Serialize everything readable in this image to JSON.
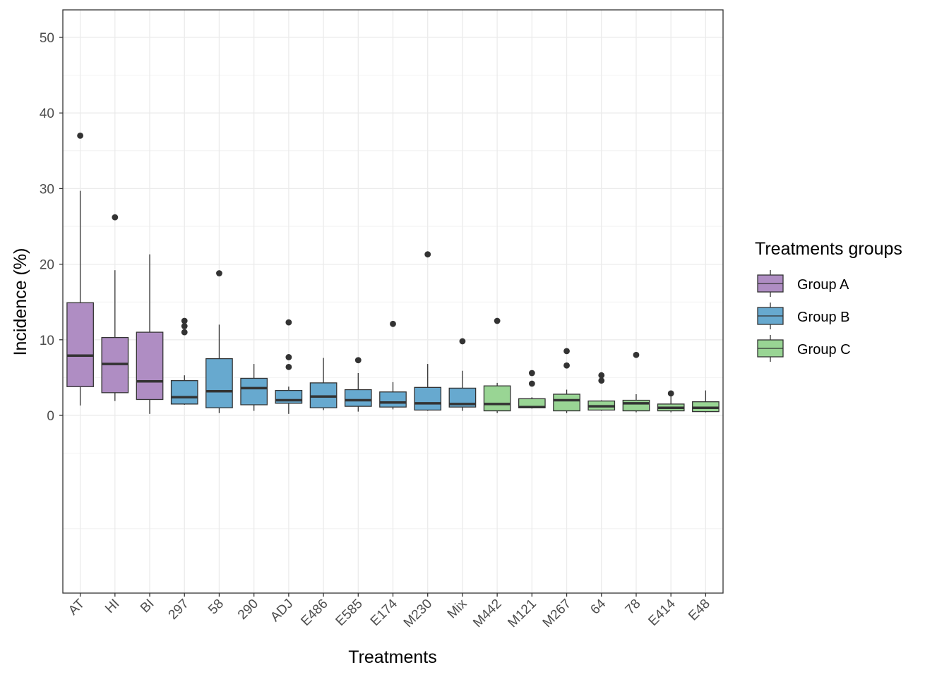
{
  "chart_data": {
    "type": "box",
    "xlabel": "Treatments",
    "ylabel": "Incidence (%)",
    "ylim": [
      -23.5,
      54
    ],
    "yticks": [
      0,
      10,
      20,
      30,
      40,
      50
    ],
    "grid": true,
    "legend": {
      "title": "Treatments groups",
      "position": "right",
      "entries": [
        {
          "label": "Group A",
          "color": "#af8dc3"
        },
        {
          "label": "Group B",
          "color": "#67a9cf"
        },
        {
          "label": "Group C",
          "color": "#99d594"
        }
      ]
    },
    "boxes": [
      {
        "category": "AT",
        "group": "Group A",
        "min": 1.3,
        "q1": 3.8,
        "median": 7.9,
        "q3": 14.9,
        "max": 29.7,
        "outliers": [
          37.0
        ]
      },
      {
        "category": "HI",
        "group": "Group A",
        "min": 1.9,
        "q1": 3.0,
        "median": 6.8,
        "q3": 10.3,
        "max": 19.2,
        "outliers": [
          26.2
        ]
      },
      {
        "category": "BI",
        "group": "Group A",
        "min": 0.2,
        "q1": 2.1,
        "median": 4.5,
        "q3": 11.0,
        "max": 21.3,
        "outliers": []
      },
      {
        "category": "297",
        "group": "Group B",
        "min": 1.4,
        "q1": 1.5,
        "median": 2.4,
        "q3": 4.6,
        "max": 5.3,
        "outliers": [
          11.0,
          11.8,
          12.5
        ]
      },
      {
        "category": "58",
        "group": "Group B",
        "min": 0.3,
        "q1": 1.0,
        "median": 3.2,
        "q3": 7.5,
        "max": 12.0,
        "outliers": [
          18.8
        ]
      },
      {
        "category": "290",
        "group": "Group B",
        "min": 0.6,
        "q1": 1.4,
        "median": 3.6,
        "q3": 4.9,
        "max": 6.8,
        "outliers": []
      },
      {
        "category": "ADJ",
        "group": "Group B",
        "min": 0.2,
        "q1": 1.6,
        "median": 2.0,
        "q3": 3.3,
        "max": 3.8,
        "outliers": [
          6.4,
          7.7,
          12.3
        ]
      },
      {
        "category": "E486",
        "group": "Group B",
        "min": 0.7,
        "q1": 1.0,
        "median": 2.5,
        "q3": 4.3,
        "max": 7.6,
        "outliers": []
      },
      {
        "category": "E585",
        "group": "Group B",
        "min": 0.5,
        "q1": 1.2,
        "median": 2.0,
        "q3": 3.4,
        "max": 5.6,
        "outliers": [
          7.3
        ]
      },
      {
        "category": "E174",
        "group": "Group B",
        "min": 0.8,
        "q1": 1.1,
        "median": 1.7,
        "q3": 3.1,
        "max": 4.4,
        "outliers": [
          12.1
        ]
      },
      {
        "category": "M230",
        "group": "Group B",
        "min": 0.6,
        "q1": 0.7,
        "median": 1.6,
        "q3": 3.7,
        "max": 6.8,
        "outliers": [
          21.3
        ]
      },
      {
        "category": "Mix",
        "group": "Group B",
        "min": 0.6,
        "q1": 1.1,
        "median": 1.5,
        "q3": 3.6,
        "max": 5.9,
        "outliers": [
          9.8
        ]
      },
      {
        "category": "M442",
        "group": "Group C",
        "min": 0.3,
        "q1": 0.6,
        "median": 1.5,
        "q3": 3.9,
        "max": 4.3,
        "outliers": [
          12.5
        ]
      },
      {
        "category": "M121",
        "group": "Group C",
        "min": 0.9,
        "q1": 1.0,
        "median": 1.1,
        "q3": 2.2,
        "max": 2.4,
        "outliers": [
          4.2,
          5.6
        ]
      },
      {
        "category": "M267",
        "group": "Group C",
        "min": 0.3,
        "q1": 0.6,
        "median": 2.0,
        "q3": 2.8,
        "max": 3.4,
        "outliers": [
          6.6,
          8.5
        ]
      },
      {
        "category": "64",
        "group": "Group C",
        "min": 0.6,
        "q1": 0.7,
        "median": 1.2,
        "q3": 1.9,
        "max": 2.0,
        "outliers": [
          4.6,
          5.3
        ]
      },
      {
        "category": "78",
        "group": "Group C",
        "min": 0.4,
        "q1": 0.6,
        "median": 1.6,
        "q3": 2.0,
        "max": 2.8,
        "outliers": [
          8.0
        ]
      },
      {
        "category": "E414",
        "group": "Group C",
        "min": 0.4,
        "q1": 0.6,
        "median": 1.0,
        "q3": 1.5,
        "max": 2.8,
        "outliers": [
          2.9
        ]
      },
      {
        "category": "E48",
        "group": "Group C",
        "min": 0.4,
        "q1": 0.5,
        "median": 1.0,
        "q3": 1.8,
        "max": 3.3,
        "outliers": []
      }
    ]
  }
}
